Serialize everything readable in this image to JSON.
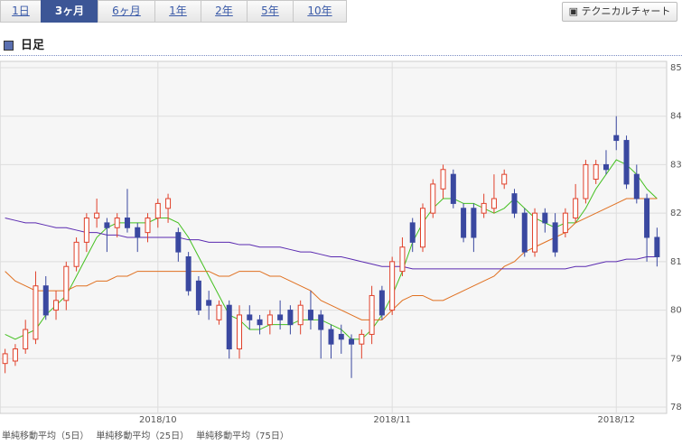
{
  "tabs": [
    "1日",
    "3ヶ月",
    "6ヶ月",
    "1年",
    "2年",
    "5年",
    "10年"
  ],
  "selected_tab": 1,
  "button": "テクニカルチャート",
  "section_title": "日足",
  "chart_data": {
    "type": "candlestick",
    "categories": [
      null,
      null,
      null,
      null,
      null,
      null,
      null,
      null,
      null,
      null,
      null,
      null,
      null,
      null,
      null,
      null,
      null,
      null,
      null,
      null,
      null,
      null,
      null,
      null,
      null,
      null,
      null,
      null,
      null,
      null,
      null,
      null,
      null,
      null,
      null,
      null,
      null,
      null,
      null,
      null,
      null,
      null,
      null,
      null,
      null,
      null,
      null,
      null,
      null,
      null,
      null,
      null,
      null,
      null,
      null,
      null,
      null,
      null,
      null,
      null,
      null,
      null,
      null,
      null,
      null
    ],
    "open": [
      78.9,
      78.95,
      79.2,
      79.4,
      80.5,
      80.0,
      80.2,
      80.9,
      81.4,
      81.9,
      81.8,
      81.7,
      81.9,
      81.7,
      81.6,
      81.9,
      82.1,
      81.6,
      81.1,
      80.6,
      80.2,
      79.8,
      80.1,
      79.2,
      79.9,
      79.8,
      79.7,
      79.9,
      80.0,
      79.7,
      80.0,
      79.9,
      79.6,
      79.5,
      79.4,
      79.3,
      79.5,
      80.4,
      80.0,
      80.8,
      81.8,
      81.3,
      82.0,
      82.5,
      82.8,
      82.1,
      82.1,
      82.0,
      82.1,
      82.6,
      82.4,
      82.0,
      81.2,
      82.0,
      81.8,
      81.6,
      81.9,
      82.3,
      82.7,
      83.0,
      83.6,
      83.5,
      82.8,
      82.3,
      81.5
    ],
    "high": [
      79.2,
      79.3,
      79.8,
      80.8,
      80.7,
      80.4,
      81.0,
      81.5,
      82.0,
      82.3,
      81.9,
      82.0,
      82.5,
      81.8,
      82.0,
      82.3,
      82.4,
      81.7,
      81.2,
      80.7,
      80.4,
      80.2,
      80.2,
      80.1,
      80.1,
      79.9,
      80.0,
      80.2,
      80.1,
      80.2,
      80.4,
      80.0,
      79.7,
      79.7,
      79.5,
      79.6,
      80.5,
      80.5,
      81.1,
      81.5,
      81.9,
      82.2,
      82.7,
      83.0,
      82.9,
      82.2,
      82.2,
      82.4,
      82.8,
      82.9,
      82.5,
      82.1,
      82.1,
      82.1,
      82.0,
      82.1,
      82.6,
      83.1,
      83.1,
      83.3,
      84.0,
      83.6,
      83.0,
      82.4,
      81.7
    ],
    "low": [
      78.7,
      78.85,
      79.1,
      79.3,
      79.8,
      79.8,
      80.0,
      80.8,
      81.2,
      81.7,
      81.2,
      81.5,
      81.6,
      81.2,
      81.4,
      81.7,
      81.8,
      81.0,
      80.3,
      79.9,
      79.8,
      79.7,
      79.0,
      79.0,
      79.6,
      79.5,
      79.5,
      79.6,
      79.5,
      79.5,
      79.6,
      79.0,
      79.0,
      79.1,
      78.6,
      79.0,
      79.3,
      79.8,
      79.9,
      80.7,
      81.2,
      81.2,
      81.9,
      82.3,
      82.1,
      81.4,
      81.2,
      81.9,
      82.0,
      82.5,
      81.9,
      81.1,
      81.1,
      81.6,
      81.1,
      81.5,
      81.8,
      82.2,
      82.6,
      82.8,
      83.3,
      82.5,
      82.2,
      81.0,
      80.9
    ],
    "close": [
      79.1,
      79.2,
      79.6,
      80.5,
      79.9,
      80.2,
      80.9,
      81.4,
      81.9,
      82.0,
      81.7,
      81.9,
      81.7,
      81.5,
      81.9,
      82.2,
      82.3,
      81.2,
      80.4,
      80.0,
      80.1,
      80.1,
      79.2,
      79.9,
      79.8,
      79.7,
      79.9,
      79.8,
      79.7,
      80.1,
      79.8,
      79.6,
      79.3,
      79.4,
      79.3,
      79.5,
      80.3,
      79.9,
      81.0,
      81.3,
      81.4,
      82.1,
      82.6,
      82.9,
      82.2,
      81.5,
      81.5,
      82.2,
      82.3,
      82.8,
      82.0,
      81.2,
      82.0,
      81.8,
      81.2,
      82.0,
      82.3,
      83.0,
      83.0,
      82.9,
      83.5,
      82.6,
      82.3,
      81.5,
      81.1
    ],
    "up_color": "#e0402a",
    "down_color": "#3a48a0",
    "series": [
      {
        "name": "単純移動平均（5日）",
        "color": "#44c020",
        "values": [
          79.5,
          79.4,
          79.5,
          79.6,
          79.9,
          80.1,
          80.3,
          80.7,
          81.1,
          81.5,
          81.7,
          81.8,
          81.8,
          81.8,
          81.8,
          81.9,
          81.9,
          81.8,
          81.5,
          81.1,
          80.7,
          80.3,
          79.9,
          79.8,
          79.6,
          79.6,
          79.7,
          79.7,
          79.7,
          79.8,
          79.8,
          79.8,
          79.7,
          79.6,
          79.4,
          79.4,
          79.6,
          79.9,
          80.3,
          80.8,
          81.4,
          81.8,
          82.1,
          82.3,
          82.3,
          82.2,
          82.2,
          82.1,
          82.0,
          82.1,
          82.3,
          82.1,
          81.9,
          81.8,
          81.7,
          81.8,
          81.8,
          82.1,
          82.5,
          82.8,
          83.1,
          83.0,
          82.8,
          82.5,
          82.3
        ]
      },
      {
        "name": "単純移動平均（25日）",
        "color": "#e07020",
        "values": [
          80.8,
          80.6,
          80.5,
          80.4,
          80.4,
          80.4,
          80.4,
          80.5,
          80.5,
          80.6,
          80.6,
          80.7,
          80.7,
          80.8,
          80.8,
          80.8,
          80.8,
          80.8,
          80.8,
          80.8,
          80.8,
          80.7,
          80.7,
          80.8,
          80.8,
          80.8,
          80.7,
          80.7,
          80.6,
          80.5,
          80.4,
          80.2,
          80.1,
          80.0,
          79.9,
          79.8,
          79.8,
          79.8,
          80.0,
          80.2,
          80.3,
          80.3,
          80.2,
          80.2,
          80.3,
          80.4,
          80.5,
          80.6,
          80.7,
          80.9,
          81.0,
          81.2,
          81.3,
          81.4,
          81.5,
          81.6,
          81.8,
          81.9,
          82.0,
          82.1,
          82.2,
          82.3,
          82.3,
          82.3,
          82.3
        ]
      },
      {
        "name": "単純移動平均（75日）",
        "color": "#5a2ab0",
        "values": [
          81.9,
          81.85,
          81.8,
          81.8,
          81.75,
          81.7,
          81.7,
          81.65,
          81.6,
          81.6,
          81.55,
          81.55,
          81.5,
          81.5,
          81.5,
          81.5,
          81.5,
          81.5,
          81.45,
          81.45,
          81.4,
          81.4,
          81.4,
          81.35,
          81.35,
          81.3,
          81.3,
          81.3,
          81.25,
          81.2,
          81.2,
          81.15,
          81.1,
          81.1,
          81.05,
          81.0,
          80.95,
          80.9,
          80.9,
          80.9,
          80.85,
          80.85,
          80.85,
          80.85,
          80.85,
          80.85,
          80.85,
          80.85,
          80.85,
          80.85,
          80.85,
          80.85,
          80.85,
          80.85,
          80.85,
          80.85,
          80.9,
          80.9,
          80.95,
          81.0,
          81.0,
          81.05,
          81.05,
          81.1,
          81.1
        ]
      }
    ],
    "ylim": [
      78,
      85
    ],
    "yticks": [
      78,
      79,
      80,
      81,
      82,
      83,
      84,
      85
    ],
    "xticks": [
      {
        "value": 15,
        "label": "2018/10"
      },
      {
        "value": 38,
        "label": "2018/11"
      },
      {
        "value": 60,
        "label": "2018/12"
      }
    ],
    "grid": true
  }
}
